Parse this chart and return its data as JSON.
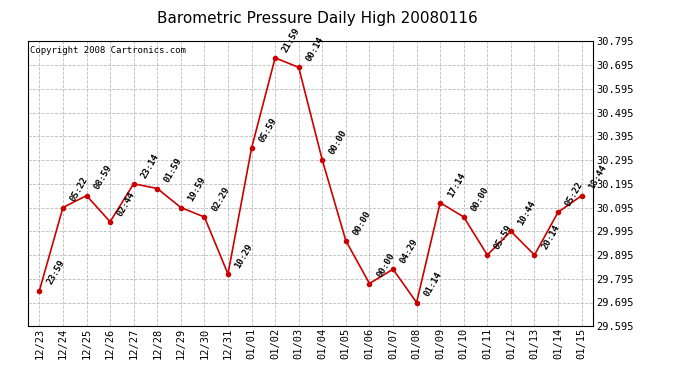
{
  "title": "Barometric Pressure Daily High 20080116",
  "copyright": "Copyright 2008 Cartronics.com",
  "x_labels": [
    "12/23",
    "12/24",
    "12/25",
    "12/26",
    "12/27",
    "12/28",
    "12/29",
    "12/30",
    "12/31",
    "01/01",
    "01/02",
    "01/03",
    "01/04",
    "01/05",
    "01/06",
    "01/07",
    "01/08",
    "01/09",
    "01/10",
    "01/11",
    "01/12",
    "01/13",
    "01/14",
    "01/15"
  ],
  "y_values": [
    29.745,
    30.095,
    30.145,
    30.035,
    30.195,
    30.175,
    30.095,
    30.055,
    29.815,
    30.345,
    30.725,
    30.685,
    30.295,
    29.955,
    29.775,
    29.835,
    29.695,
    30.115,
    30.055,
    29.895,
    29.995,
    29.895,
    30.075,
    30.145
  ],
  "annotations": [
    "23:59",
    "05:22",
    "08:59",
    "02:44",
    "23:14",
    "01:59",
    "19:59",
    "02:29",
    "10:29",
    "05:59",
    "21:59",
    "00:14",
    "00:00",
    "00:00",
    "00:00",
    "04:29",
    "01:14",
    "17:14",
    "00:00",
    "05:59",
    "10:44",
    "20:14",
    "05:22",
    "18:44"
  ],
  "ylim_min": 29.595,
  "ylim_max": 30.795,
  "ytick_step": 0.1,
  "line_color": "#cc0000",
  "marker_color": "#cc0000",
  "background_color": "#ffffff",
  "grid_color": "#bbbbbb",
  "title_fontsize": 11,
  "annotation_fontsize": 6.5,
  "tick_fontsize": 7.5,
  "copyright_fontsize": 6.5
}
